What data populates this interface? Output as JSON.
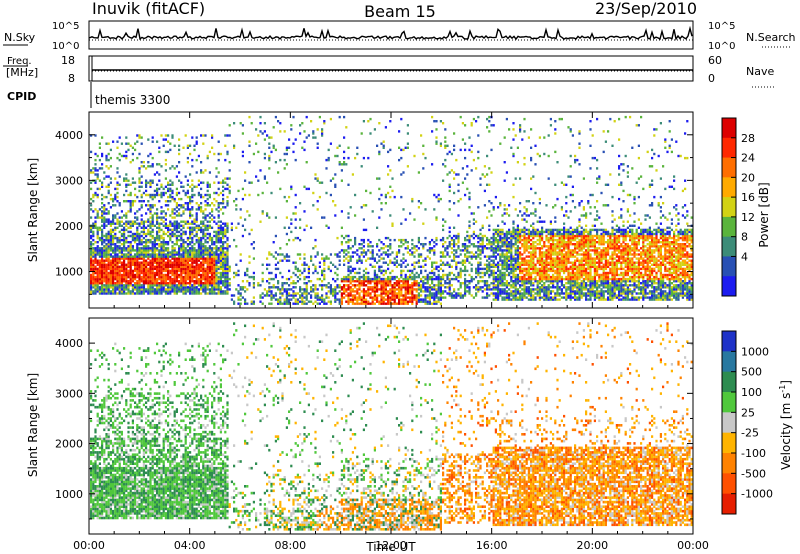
{
  "header": {
    "station": "Inuvik (fitACF)",
    "beam": "Beam 15",
    "date": "23/Sep/2010"
  },
  "noise_panel": {
    "left_label": "N.Sky",
    "right_label": "N.Search",
    "left_ticks": [
      "10^5",
      "10^0"
    ],
    "right_ticks": [
      "10^5",
      "10^0"
    ]
  },
  "freq_panel": {
    "left_label_1": "Freq.",
    "left_label_2": "[MHz]",
    "right_label": "Nave",
    "left_ticks": [
      "18",
      "8"
    ],
    "right_ticks": [
      "60",
      "0"
    ]
  },
  "cpid": {
    "label": "CPID",
    "value": "themis 3300"
  },
  "x_axis": {
    "label": "Time UT",
    "ticks": [
      "00:00",
      "04:00",
      "08:00",
      "12:00",
      "16:00",
      "20:00",
      "00:00"
    ]
  },
  "chart_data": [
    {
      "type": "heatmap",
      "name": "power",
      "ylabel": "Slant Range [km]",
      "xlabel": "Time UT",
      "ylim": [
        200,
        4500
      ],
      "xlim": [
        0,
        24
      ],
      "y_ticks": [
        "1000",
        "2000",
        "3000",
        "4000"
      ],
      "y_tick_values": [
        1000,
        2000,
        3000,
        4000
      ],
      "colorbar": {
        "label": "Power [dB]",
        "ticks": [
          "4",
          "8",
          "12",
          "16",
          "20",
          "24",
          "28"
        ],
        "tick_values": [
          4,
          8,
          12,
          16,
          20,
          24,
          28
        ],
        "colors": [
          "#1c1cf0",
          "#2850b4",
          "#3c8c78",
          "#5ab43c",
          "#d2d214",
          "#ffaa00",
          "#ff6e00",
          "#ff2800",
          "#dc0000"
        ]
      }
    },
    {
      "type": "heatmap",
      "name": "velocity",
      "ylabel": "Slant Range [km]",
      "xlabel": "Time UT",
      "ylim": [
        200,
        4500
      ],
      "xlim": [
        0,
        24
      ],
      "y_ticks": [
        "1000",
        "2000",
        "3000",
        "4000"
      ],
      "y_tick_values": [
        1000,
        2000,
        3000,
        4000
      ],
      "colorbar": {
        "label": "Velocity [m s",
        "label_sup": "-1",
        "label_end": "]",
        "ticks": [
          "1000",
          "500",
          "100",
          "25",
          "-25",
          "-100",
          "-500",
          "-1000"
        ],
        "colors": [
          "#1e32c8",
          "#2878a0",
          "#2d8c50",
          "#50c83c",
          "#c8c8c8",
          "#ffb400",
          "#ff8200",
          "#ff5000",
          "#e61e00"
        ]
      }
    }
  ]
}
